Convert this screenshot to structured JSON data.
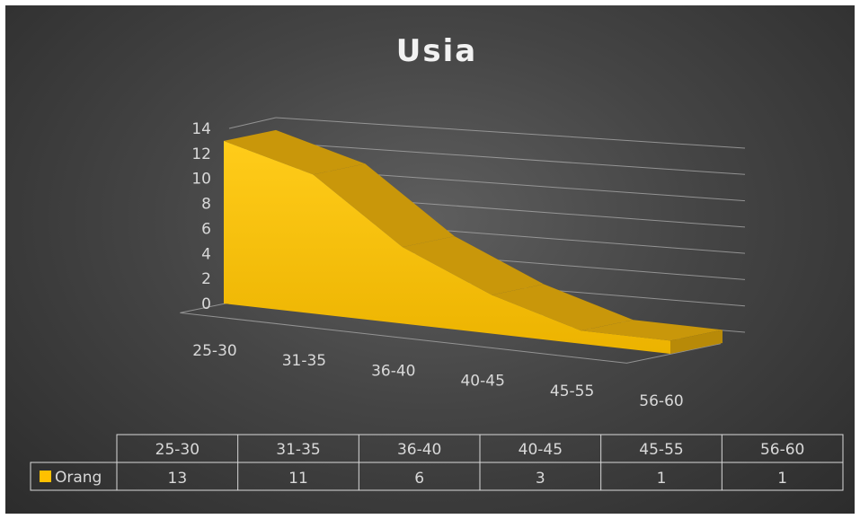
{
  "chart_data": {
    "type": "area",
    "title": "Usia",
    "categories": [
      "25-30",
      "31-35",
      "36-40",
      "40-45",
      "45-55",
      "56-60"
    ],
    "series": [
      {
        "name": "Orang",
        "values": [
          13,
          11,
          6,
          3,
          1,
          1
        ]
      }
    ],
    "yticks": [
      0,
      2,
      4,
      6,
      8,
      10,
      12,
      14
    ],
    "ylim": [
      0,
      14
    ],
    "grid": true,
    "data_table": true,
    "legend": "data-table-left",
    "colors": {
      "series": "#ffc000",
      "series_top": "#c9970a",
      "series_front": "#ecb300",
      "background": "#3a3a3a",
      "grid": "#a6a6a6",
      "text": "#d9d9d9"
    }
  }
}
